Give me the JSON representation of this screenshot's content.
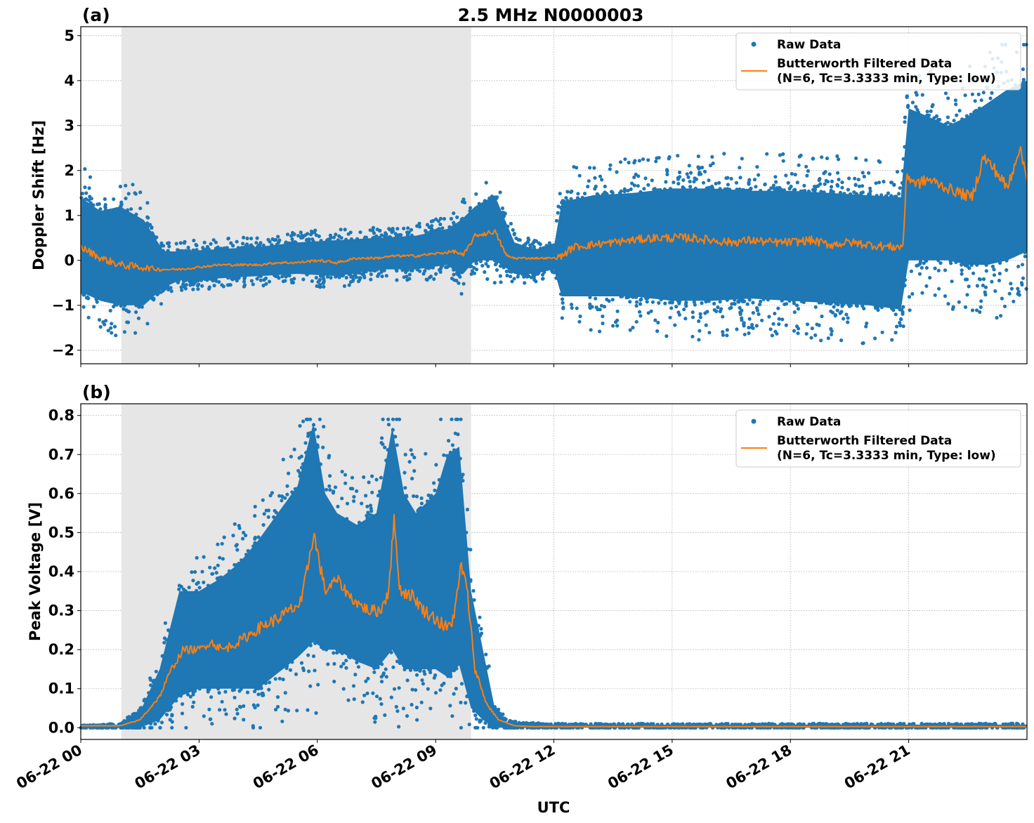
{
  "figure": {
    "title": "2.5 MHz N0000003",
    "xlabel": "UTC"
  },
  "chart_data": [
    {
      "type": "scatter",
      "panel_label": "(a)",
      "ylabel": "Doppler Shift [Hz]",
      "ylim": [
        -2.3,
        5.2
      ],
      "yticks": [
        -2,
        -1,
        0,
        1,
        2,
        3,
        4,
        5
      ],
      "ytick_labels": [
        "−2",
        "−1",
        "0",
        "1",
        "2",
        "3",
        "4",
        "5"
      ],
      "xlim_hours": [
        0,
        24
      ],
      "xticks_hours": [
        0,
        3,
        6,
        9,
        12,
        15,
        18,
        21
      ],
      "xtick_labels": [
        "06-22 00",
        "06-22 03",
        "06-22 06",
        "06-22 09",
        "06-22 12",
        "06-22 15",
        "06-22 18",
        "06-22 21"
      ],
      "shaded_interval_hours": [
        1.03,
        9.9
      ],
      "grid": true,
      "legend": {
        "location": "top-right",
        "raw_label": "Raw Data",
        "filtered_label_line1": "Butterworth Filtered Data",
        "filtered_label_line2": "(N=6, Tc=3.3333 min, Type: low)"
      },
      "series": [
        {
          "name": "Raw Data",
          "kind": "scatter",
          "color": "#1f77b4",
          "envelope": {
            "x": [
              0,
              0.5,
              1.0,
              1.6,
              2.1,
              2.5,
              3.5,
              4.5,
              5.5,
              6.5,
              7.5,
              8.5,
              9.3,
              9.65,
              10.0,
              10.5,
              11.0,
              11.5,
              12.0,
              12.2,
              13.0,
              14.0,
              15.0,
              16.0,
              17.0,
              18.0,
              19.0,
              20.0,
              20.85,
              20.95,
              21.5,
              22.0,
              22.5,
              23.0,
              23.5,
              24.0
            ],
            "low": [
              -0.7,
              -0.9,
              -1.0,
              -1.0,
              -0.6,
              -0.45,
              -0.4,
              -0.35,
              -0.3,
              -0.35,
              -0.2,
              -0.2,
              -0.1,
              -0.35,
              0.0,
              0.0,
              -0.3,
              -0.3,
              -0.2,
              -0.8,
              -0.8,
              -0.8,
              -0.9,
              -0.9,
              -0.85,
              -0.9,
              -0.95,
              -1.0,
              -1.1,
              0.0,
              0.0,
              0.0,
              -0.1,
              -0.1,
              0.0,
              0.2
            ],
            "high": [
              1.4,
              1.1,
              1.2,
              0.9,
              0.2,
              0.2,
              0.25,
              0.3,
              0.4,
              0.45,
              0.5,
              0.55,
              0.7,
              0.9,
              1.2,
              1.45,
              0.4,
              0.25,
              0.3,
              1.3,
              1.45,
              1.5,
              1.6,
              1.6,
              1.55,
              1.55,
              1.5,
              1.45,
              1.4,
              3.4,
              3.2,
              3.0,
              3.2,
              3.5,
              3.8,
              4.0
            ]
          },
          "outlier_max": 4.8,
          "outlier_min": -2.0
        },
        {
          "name": "Butterworth Filtered Data",
          "kind": "line",
          "color": "#ff7f0e",
          "x": [
            0,
            0.5,
            1.0,
            1.5,
            2.0,
            2.5,
            3.0,
            3.5,
            4.0,
            4.5,
            5.0,
            5.5,
            6.0,
            6.5,
            7.0,
            7.5,
            8.0,
            8.5,
            9.0,
            9.5,
            9.7,
            10.0,
            10.3,
            10.5,
            10.8,
            11.0,
            11.5,
            12.0,
            12.2,
            12.5,
            13.0,
            13.5,
            14.0,
            14.5,
            15.0,
            15.5,
            16.0,
            16.5,
            17.0,
            17.5,
            18.0,
            18.5,
            19.0,
            19.5,
            20.0,
            20.5,
            20.85,
            20.95,
            21.2,
            21.5,
            22.0,
            22.3,
            22.6,
            22.9,
            23.2,
            23.5,
            23.8,
            24.0
          ],
          "y": [
            0.3,
            0.05,
            -0.1,
            -0.15,
            -0.2,
            -0.2,
            -0.15,
            -0.1,
            -0.1,
            -0.1,
            -0.05,
            -0.05,
            0.0,
            -0.05,
            0.05,
            0.05,
            0.1,
            0.1,
            0.15,
            0.2,
            0.1,
            0.55,
            0.6,
            0.65,
            0.1,
            0.05,
            0.05,
            0.05,
            0.1,
            0.3,
            0.35,
            0.4,
            0.45,
            0.5,
            0.5,
            0.5,
            0.45,
            0.4,
            0.45,
            0.4,
            0.4,
            0.45,
            0.35,
            0.4,
            0.35,
            0.3,
            0.3,
            1.9,
            1.7,
            1.8,
            1.6,
            1.5,
            1.4,
            2.3,
            2.0,
            1.6,
            2.5,
            1.9
          ]
        }
      ]
    },
    {
      "type": "scatter",
      "panel_label": "(b)",
      "ylabel": "Peak Voltage [V]",
      "ylim": [
        -0.03,
        0.83
      ],
      "yticks": [
        0.0,
        0.1,
        0.2,
        0.3,
        0.4,
        0.5,
        0.6,
        0.7,
        0.8
      ],
      "ytick_labels": [
        "0.0",
        "0.1",
        "0.2",
        "0.3",
        "0.4",
        "0.5",
        "0.6",
        "0.7",
        "0.8"
      ],
      "xlim_hours": [
        0,
        24
      ],
      "xticks_hours": [
        0,
        3,
        6,
        9,
        12,
        15,
        18,
        21
      ],
      "xtick_labels": [
        "06-22 00",
        "06-22 03",
        "06-22 06",
        "06-22 09",
        "06-22 12",
        "06-22 15",
        "06-22 18",
        "06-22 21"
      ],
      "shaded_interval_hours": [
        1.03,
        9.9
      ],
      "grid": true,
      "legend": {
        "location": "top-right",
        "raw_label": "Raw Data",
        "filtered_label_line1": "Butterworth Filtered Data",
        "filtered_label_line2": "(N=6, Tc=3.3333 min, Type: low)"
      },
      "series": [
        {
          "name": "Raw Data",
          "kind": "scatter",
          "color": "#1f77b4",
          "envelope": {
            "x": [
              0,
              1.0,
              1.5,
              2.0,
              2.5,
              3.0,
              3.5,
              4.0,
              4.5,
              5.0,
              5.5,
              5.9,
              6.2,
              6.5,
              7.0,
              7.5,
              7.9,
              8.2,
              8.5,
              9.0,
              9.3,
              9.6,
              9.9,
              10.2,
              10.5,
              10.8,
              11.2,
              12.0,
              24.0
            ],
            "low": [
              0.0,
              0.0,
              0.0,
              0.02,
              0.08,
              0.1,
              0.1,
              0.1,
              0.1,
              0.14,
              0.18,
              0.22,
              0.2,
              0.2,
              0.17,
              0.15,
              0.2,
              0.15,
              0.15,
              0.15,
              0.13,
              0.16,
              0.05,
              0.02,
              0.0,
              0.0,
              0.0,
              0.0,
              0.0
            ],
            "high": [
              0.005,
              0.008,
              0.04,
              0.15,
              0.35,
              0.35,
              0.38,
              0.42,
              0.48,
              0.55,
              0.62,
              0.78,
              0.6,
              0.55,
              0.52,
              0.55,
              0.77,
              0.6,
              0.55,
              0.6,
              0.7,
              0.72,
              0.35,
              0.2,
              0.05,
              0.015,
              0.01,
              0.008,
              0.008
            ]
          },
          "outlier_max": 0.79,
          "outlier_min": 0.0
        },
        {
          "name": "Butterworth Filtered Data",
          "kind": "line",
          "color": "#ff7f0e",
          "x": [
            0,
            1.0,
            1.5,
            2.0,
            2.3,
            2.6,
            3.0,
            3.3,
            3.6,
            4.0,
            4.3,
            4.6,
            5.0,
            5.3,
            5.6,
            5.9,
            6.2,
            6.5,
            6.8,
            7.0,
            7.3,
            7.6,
            7.8,
            7.95,
            8.1,
            8.4,
            8.7,
            9.0,
            9.3,
            9.5,
            9.65,
            9.8,
            10.0,
            10.3,
            10.6,
            11.0,
            11.5,
            12.0,
            24.0
          ],
          "y": [
            0.005,
            0.005,
            0.02,
            0.08,
            0.15,
            0.2,
            0.2,
            0.22,
            0.2,
            0.22,
            0.24,
            0.26,
            0.28,
            0.3,
            0.32,
            0.5,
            0.35,
            0.38,
            0.34,
            0.32,
            0.3,
            0.3,
            0.35,
            0.53,
            0.35,
            0.34,
            0.3,
            0.28,
            0.25,
            0.3,
            0.42,
            0.35,
            0.15,
            0.06,
            0.02,
            0.005,
            0.003,
            0.003,
            0.003
          ]
        }
      ]
    }
  ]
}
